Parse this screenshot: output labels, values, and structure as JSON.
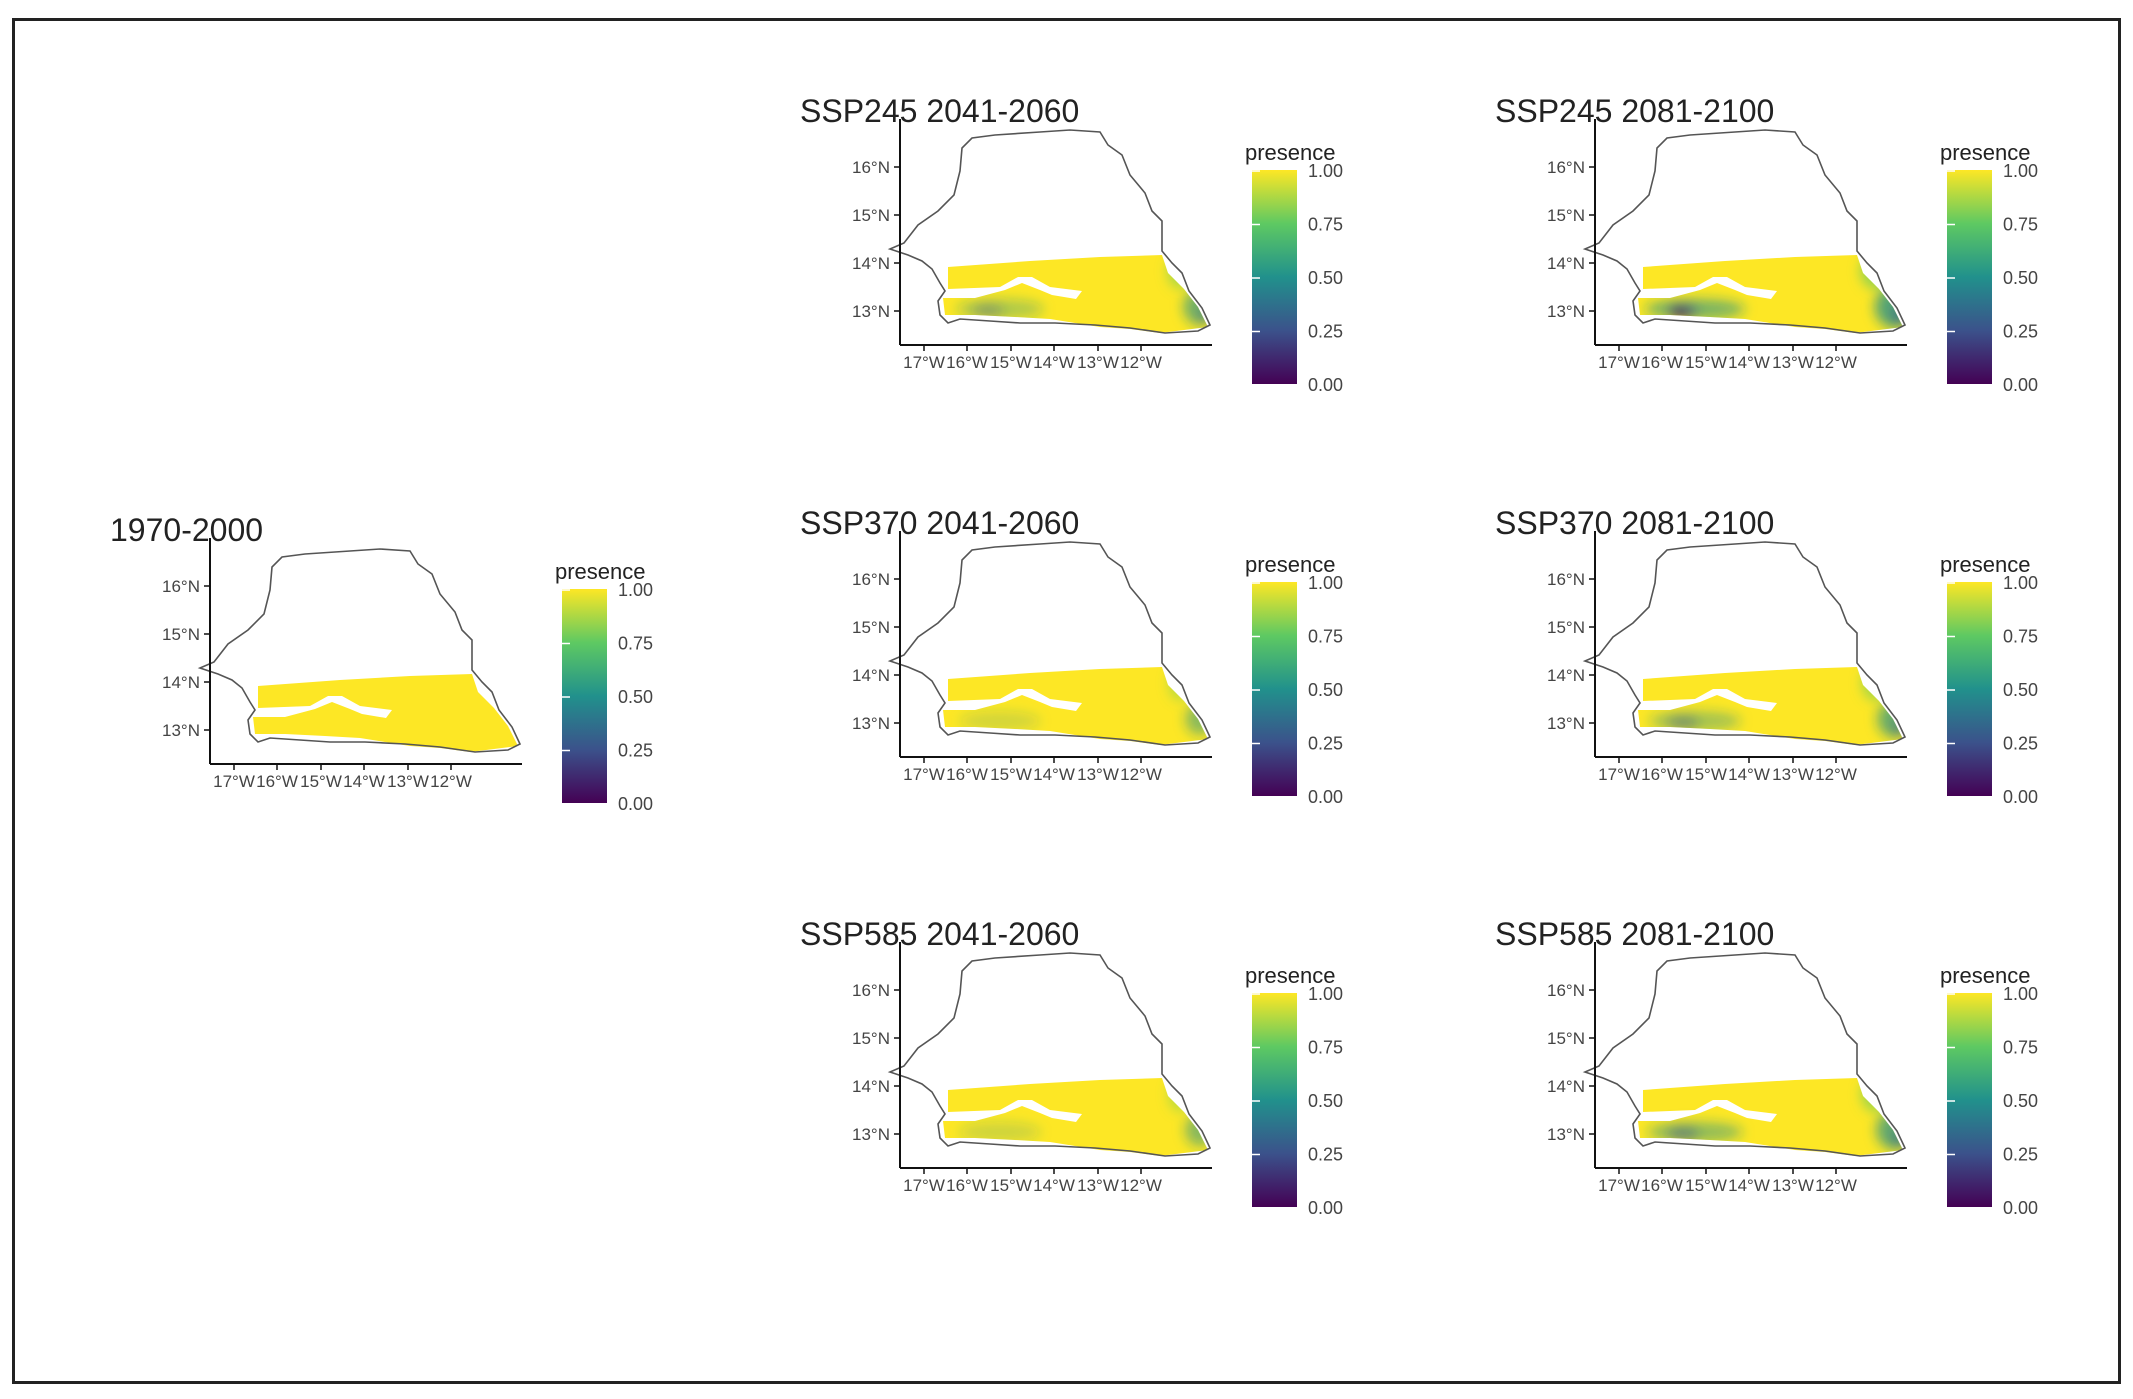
{
  "figure": {
    "panels": [
      {
        "id": "baseline",
        "title": "1970-2000",
        "stress": 0.02
      },
      {
        "id": "ssp245-2041",
        "title": "SSP245 2041-2060",
        "stress": 0.35
      },
      {
        "id": "ssp245-2081",
        "title": "SSP245 2081-2100",
        "stress": 0.6
      },
      {
        "id": "ssp370-2041",
        "title": "SSP370 2041-2060",
        "stress": 0.2
      },
      {
        "id": "ssp370-2081",
        "title": "SSP370 2081-2100",
        "stress": 0.42
      },
      {
        "id": "ssp585-2041",
        "title": "SSP585 2041-2060",
        "stress": 0.22
      },
      {
        "id": "ssp585-2081",
        "title": "SSP585 2081-2100",
        "stress": 0.5
      }
    ],
    "lat_ticks": [
      "16°N",
      "15°N",
      "14°N",
      "13°N"
    ],
    "lon_ticks": [
      "17°W",
      "16°W",
      "15°W",
      "14°W",
      "13°W",
      "12°W"
    ],
    "legend": {
      "title": "presence",
      "ticks": [
        "1.00",
        "0.75",
        "0.50",
        "0.25",
        "0.00"
      ],
      "colors": [
        "#fde725",
        "#5ec962",
        "#21918c",
        "#3b528b",
        "#440154"
      ]
    }
  }
}
